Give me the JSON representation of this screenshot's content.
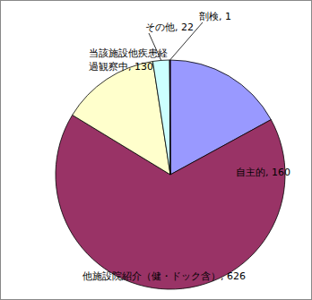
{
  "chart_data": {
    "type": "pie",
    "categories": [
      "自主的",
      "他施設院紹介（健・ドック含）",
      "当該施設他疾患経過観察中",
      "その他",
      "剖検"
    ],
    "values": [
      160,
      626,
      130,
      22,
      1
    ],
    "value_labels": [
      "自主的, 160",
      "他施設院紹介（健・ドック含）, 626",
      "当該施設他疾患経過観察中, 130",
      "その他, 22",
      "剖検, 1"
    ],
    "colors": [
      "#9999ff",
      "#993366",
      "#ffffcc",
      "#ccffff",
      "#660066"
    ],
    "data_labels": true
  }
}
